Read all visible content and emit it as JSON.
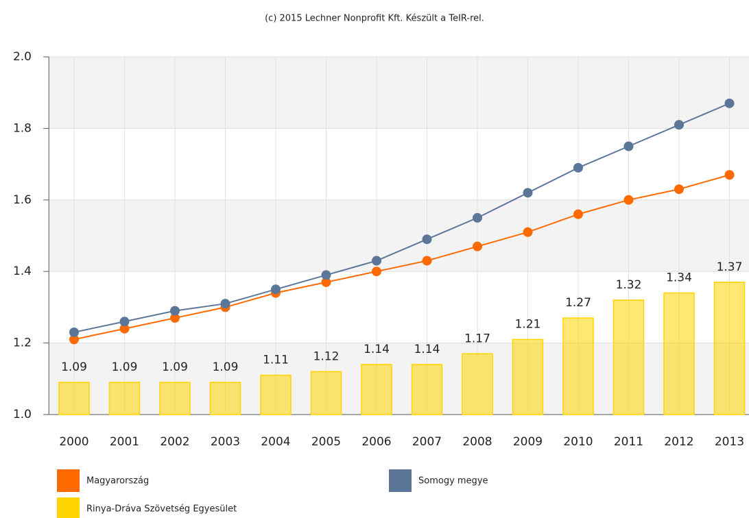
{
  "chart_data": {
    "type": "bar",
    "title": "(c) 2015 Lechner Nonprofit Kft. Készült a TeIR-rel.",
    "categories": [
      "2000",
      "2001",
      "2002",
      "2003",
      "2004",
      "2005",
      "2006",
      "2007",
      "2008",
      "2009",
      "2010",
      "2011",
      "2012",
      "2013"
    ],
    "series": [
      {
        "name": "Magyarország",
        "type": "line",
        "color": "#ff6a00",
        "values": [
          1.21,
          1.24,
          1.27,
          1.3,
          1.34,
          1.37,
          1.4,
          1.43,
          1.47,
          1.51,
          1.56,
          1.6,
          1.63,
          1.67
        ]
      },
      {
        "name": "Somogy megye",
        "type": "line",
        "color": "#5b7699",
        "values": [
          1.23,
          1.26,
          1.29,
          1.31,
          1.35,
          1.39,
          1.43,
          1.49,
          1.55,
          1.62,
          1.69,
          1.75,
          1.81,
          1.87
        ]
      },
      {
        "name": "Rinya-Dráva Szövetség Egyesület",
        "type": "bar",
        "color": "#ffd400",
        "values": [
          1.09,
          1.09,
          1.09,
          1.09,
          1.11,
          1.12,
          1.14,
          1.14,
          1.17,
          1.21,
          1.27,
          1.32,
          1.34,
          1.37
        ]
      }
    ],
    "ylim": [
      1.0,
      2.0
    ],
    "yticks": [
      {
        "value": 1.0,
        "label": "1.0"
      },
      {
        "value": 1.2,
        "label": "1.2"
      },
      {
        "value": 1.4,
        "label": "1.4"
      },
      {
        "value": 1.6,
        "label": "1.6"
      },
      {
        "value": 1.8,
        "label": "1.8"
      },
      {
        "value": 2.0,
        "label": "2.0"
      }
    ],
    "grid": true
  }
}
